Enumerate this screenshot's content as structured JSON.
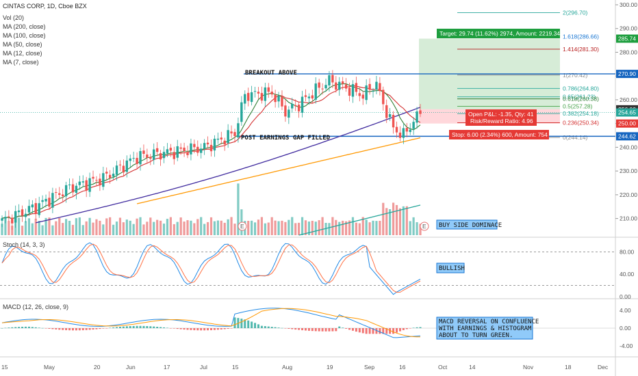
{
  "header": {
    "title": "CINTAS CORP, 1D, Cboe BZX",
    "indicators": [
      "Vol (20)",
      "MA (200, close)",
      "MA (100, close)",
      "MA (50, close)",
      "MA (12, close)",
      "MA (7, close)"
    ]
  },
  "stoch_title": "Stoch (14, 3, 3)",
  "macd_title": "MACD (12, 26, close, 9)",
  "annotations": {
    "breakout": "BREAKOUT ABOVE",
    "gap": "POST EARNINGS GAP FILLED",
    "volume": "BUY SIDE DOMINACE",
    "stoch": "BULLISH",
    "macd": [
      "MACD REVERSAL ON CONFLUENCE",
      "WITH EARNINGS & HISTOGRAM",
      "ABOUT TO TURN GREEN."
    ]
  },
  "trade": {
    "target": "Target: 29.74 (11.62%) 2974, Amount: 2219.34",
    "open_pl": "Open P&L: -1.35, Qty: 41",
    "rr": "Risk/Reward Ratio: 4.96",
    "stop": "Stop: 6.00 (2.34%) 600, Amount: 754"
  },
  "earnings_marker": "E",
  "colors": {
    "up": "#26a69a",
    "down": "#ef5350",
    "ma200": "#ff9800",
    "ma100": "#3f2a9e",
    "ma12": "#d32f2f",
    "ma7": "#2e7d32",
    "level": "#1565c0",
    "stoch_k": "#1e88e5",
    "stoch_d": "#ff7043",
    "macd": "#1e88e5",
    "signal": "#ff9800"
  },
  "chart_data": {
    "type": "candlestick",
    "y_axis": {
      "range": [
        205,
        300
      ],
      "ticks": [
        "300.00",
        "290.00",
        "280.00",
        "270.00",
        "260.00",
        "250.00",
        "240.00",
        "230.00",
        "220.00",
        "210.00"
      ]
    },
    "price_tags": [
      {
        "label": "285.74",
        "value": 285.74,
        "color": "#1e9e3e"
      },
      {
        "label": "270.90",
        "value": 270.9,
        "color": "#1565c0"
      },
      {
        "label": "256.00",
        "value": 256.0,
        "color": "#333333"
      },
      {
        "label": "254.65",
        "value": 254.65,
        "color": "#26a69a"
      },
      {
        "label": "250.00",
        "value": 250.0,
        "color": "#e53935"
      },
      {
        "label": "244.62",
        "value": 244.62,
        "color": "#1565c0"
      }
    ],
    "levels": [
      {
        "name": "breakout",
        "value": 270.9
      },
      {
        "name": "gap",
        "value": 244.62
      }
    ],
    "fib_levels": [
      {
        "label": "2(296.70)",
        "value": 296.7,
        "color": "#26a69a"
      },
      {
        "label": "1.618(286.66)",
        "value": 286.66,
        "color": "#1976d2"
      },
      {
        "label": "1.414(281.30)",
        "value": 281.3,
        "color": "#b71c1c"
      },
      {
        "label": "1(270.42)",
        "value": 270.42,
        "color": "#888888"
      },
      {
        "label": "0.786(264.80)",
        "value": 264.8,
        "color": "#26a69a"
      },
      {
        "label": "0.65(261.23)",
        "value": 261.23,
        "color": "#26a69a"
      },
      {
        "label": "0.618(260.38)",
        "value": 260.38,
        "color": "#2e7d32"
      },
      {
        "label": "0.5(257.28)",
        "value": 257.28,
        "color": "#43a047"
      },
      {
        "label": "0.382(254.18)",
        "value": 254.18,
        "color": "#26a69a"
      },
      {
        "label": "0.236(250.34)",
        "value": 250.34,
        "color": "#d32f2f"
      },
      {
        "label": "0(244.14)",
        "value": 244.14,
        "color": "#888888"
      }
    ],
    "trade_zone": {
      "entry": 256.0,
      "target": 285.74,
      "stop": 250.0
    },
    "x_labels": [
      "15",
      "May",
      "20",
      "Jun",
      "17",
      "Jul",
      "15",
      "Aug",
      "19",
      "Sep",
      "16",
      "Oct",
      "14",
      "Nov",
      "18",
      "Dec"
    ],
    "stoch": {
      "ticks": [
        "80.00",
        "40.00",
        "0.00"
      ],
      "range": [
        0,
        100
      ],
      "levels": [
        80,
        20
      ]
    },
    "macd": {
      "ticks": [
        "4.00",
        "0.00",
        "-4.00"
      ],
      "range": [
        -6,
        6
      ]
    }
  }
}
